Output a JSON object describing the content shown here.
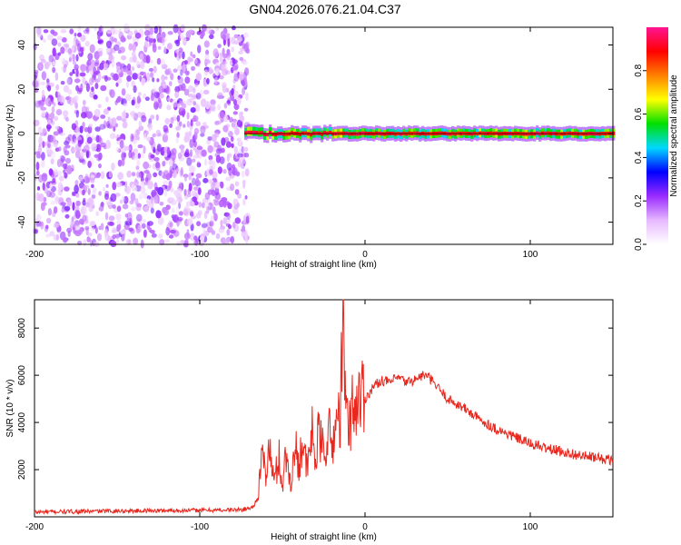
{
  "title": "GN04.2026.076.21.04.C37",
  "chart_data": [
    {
      "type": "heatmap",
      "xlabel": "Height of straight line (km)",
      "ylabel": "Frequency (Hz)",
      "xlim": [
        -200,
        150
      ],
      "ylim": [
        -50,
        48
      ],
      "xticks": [
        -200,
        -100,
        0,
        100
      ],
      "yticks": [
        -40,
        -20,
        0,
        20,
        40
      ],
      "colorbar": {
        "label": "Normalized spectral amplitude",
        "range": [
          0,
          1
        ],
        "ticks": [
          "0.0",
          "0.2",
          "0.4",
          "0.6",
          "0.8"
        ],
        "colors": [
          "#ffffff",
          "#e6b8ff",
          "#9a2bff",
          "#0000ff",
          "#00d8ff",
          "#00e000",
          "#ffff00",
          "#ff8000",
          "#ff0000",
          "#ff1493"
        ]
      },
      "noise_region_x": [
        -200,
        -73
      ],
      "signal_band_freq": [
        -2,
        2
      ],
      "signal_start_x": -73
    },
    {
      "type": "line",
      "xlabel": "Height of straight line (km)",
      "ylabel": "SNR (10 * v/v)",
      "xlim": [
        -200,
        150
      ],
      "ylim": [
        0,
        9200
      ],
      "xticks": [
        -200,
        -100,
        0,
        100
      ],
      "yticks": [
        2000,
        4000,
        6000,
        8000
      ],
      "series": [
        {
          "color": "#e8281e",
          "x": [
            -200,
            -150,
            -100,
            -75,
            -68,
            -65,
            -62,
            -60,
            -58,
            -55,
            -52,
            -50,
            -48,
            -45,
            -42,
            -40,
            -38,
            -35,
            -32,
            -30,
            -28,
            -25,
            -22,
            -20,
            -18,
            -15,
            -13,
            -12,
            -11,
            -10,
            -8,
            -5,
            -2,
            0,
            5,
            10,
            15,
            20,
            25,
            30,
            35,
            38,
            40,
            45,
            50,
            60,
            70,
            80,
            90,
            100,
            110,
            120,
            130,
            140,
            150
          ],
          "y": [
            200,
            250,
            280,
            300,
            400,
            800,
            2600,
            1800,
            2900,
            1500,
            2500,
            1300,
            2600,
            1500,
            2900,
            2200,
            3300,
            1900,
            3600,
            2400,
            3500,
            2700,
            3700,
            2800,
            3900,
            4400,
            8900,
            5000,
            4200,
            3600,
            4600,
            4800,
            5300,
            5000,
            5500,
            5800,
            5700,
            5900,
            5700,
            5800,
            6000,
            5950,
            5800,
            5400,
            5000,
            4600,
            4100,
            3700,
            3400,
            3100,
            2900,
            2750,
            2600,
            2500,
            2400
          ]
        }
      ]
    }
  ]
}
